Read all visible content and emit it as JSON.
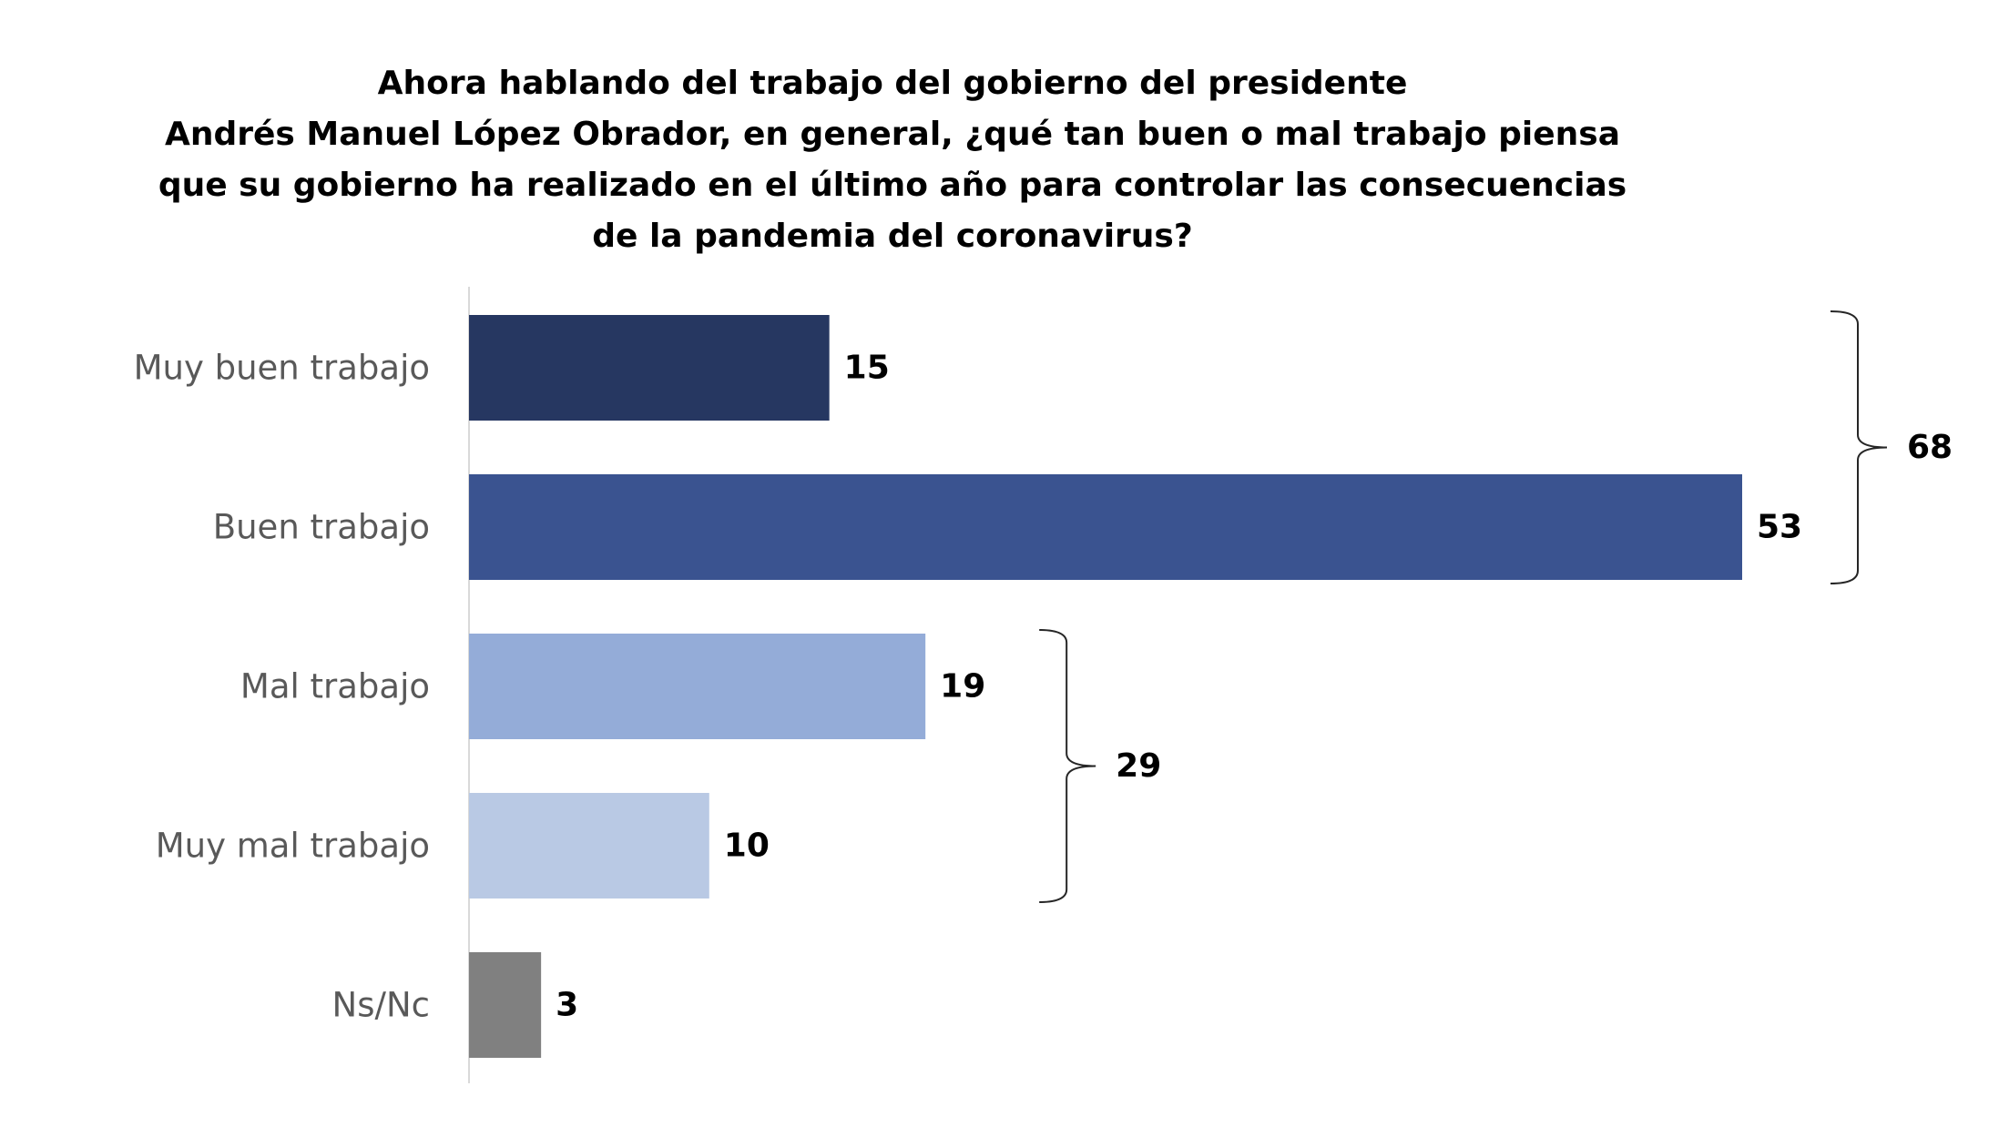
{
  "chart_data": {
    "type": "bar",
    "orientation": "horizontal",
    "title_lines": [
      "Ahora hablando del trabajo del gobierno del presidente",
      "Andrés Manuel López Obrador, en general, ¿qué tan buen o mal trabajo piensa",
      "que su gobierno ha realizado en el último año para controlar las consecuencias",
      "de la pandemia del coronavirus?"
    ],
    "categories": [
      "Muy buen trabajo",
      "Buen trabajo",
      "Mal trabajo",
      "Muy mal trabajo",
      "Ns/Nc"
    ],
    "values": [
      15,
      53,
      19,
      10,
      3
    ],
    "value_labels": [
      "15",
      "53",
      "19",
      "10",
      "3"
    ],
    "colors": [
      "#263761",
      "#3a5390",
      "#94acd8",
      "#b9c9e4",
      "#808080"
    ],
    "xlim": [
      0,
      53
    ],
    "grid": false,
    "legend": "none",
    "groups": [
      {
        "label": "68",
        "value": 68,
        "from": 0,
        "to": 1
      },
      {
        "label": "29",
        "value": 29,
        "from": 2,
        "to": 3
      }
    ]
  }
}
